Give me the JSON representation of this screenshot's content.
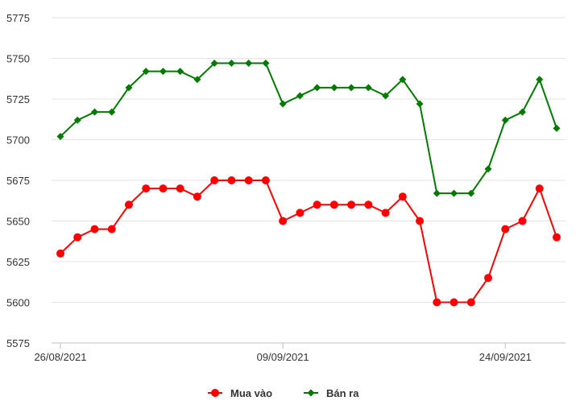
{
  "chart_data": {
    "type": "line",
    "title": "",
    "xlabel": "",
    "ylabel": "",
    "ylim": [
      5575,
      5775
    ],
    "yticks": [
      5575,
      5600,
      5625,
      5650,
      5675,
      5700,
      5725,
      5750,
      5775
    ],
    "grid": "horizontal",
    "legend_position": "bottom",
    "x_tick_labels": [
      {
        "index": 0,
        "label": "26/08/2021"
      },
      {
        "index": 13,
        "label": "09/09/2021"
      },
      {
        "index": 26,
        "label": "24/09/2021"
      }
    ],
    "series": [
      {
        "name": "Mua vào",
        "color": "#ff0000",
        "marker": "circle",
        "values": [
          5630,
          5640,
          5645,
          5645,
          5660,
          5670,
          5670,
          5670,
          5665,
          5675,
          5675,
          5675,
          5675,
          5650,
          5655,
          5660,
          5660,
          5660,
          5660,
          5655,
          5665,
          5650,
          5600,
          5600,
          5600,
          5615,
          5645,
          5650,
          5670,
          5640
        ]
      },
      {
        "name": "Bán ra",
        "color": "#007a00",
        "marker": "diamond",
        "values": [
          5702,
          5712,
          5717,
          5717,
          5732,
          5742,
          5742,
          5742,
          5737,
          5747,
          5747,
          5747,
          5747,
          5722,
          5727,
          5732,
          5732,
          5732,
          5732,
          5727,
          5737,
          5722,
          5667,
          5667,
          5667,
          5682,
          5712,
          5717,
          5737,
          5707
        ]
      }
    ]
  }
}
